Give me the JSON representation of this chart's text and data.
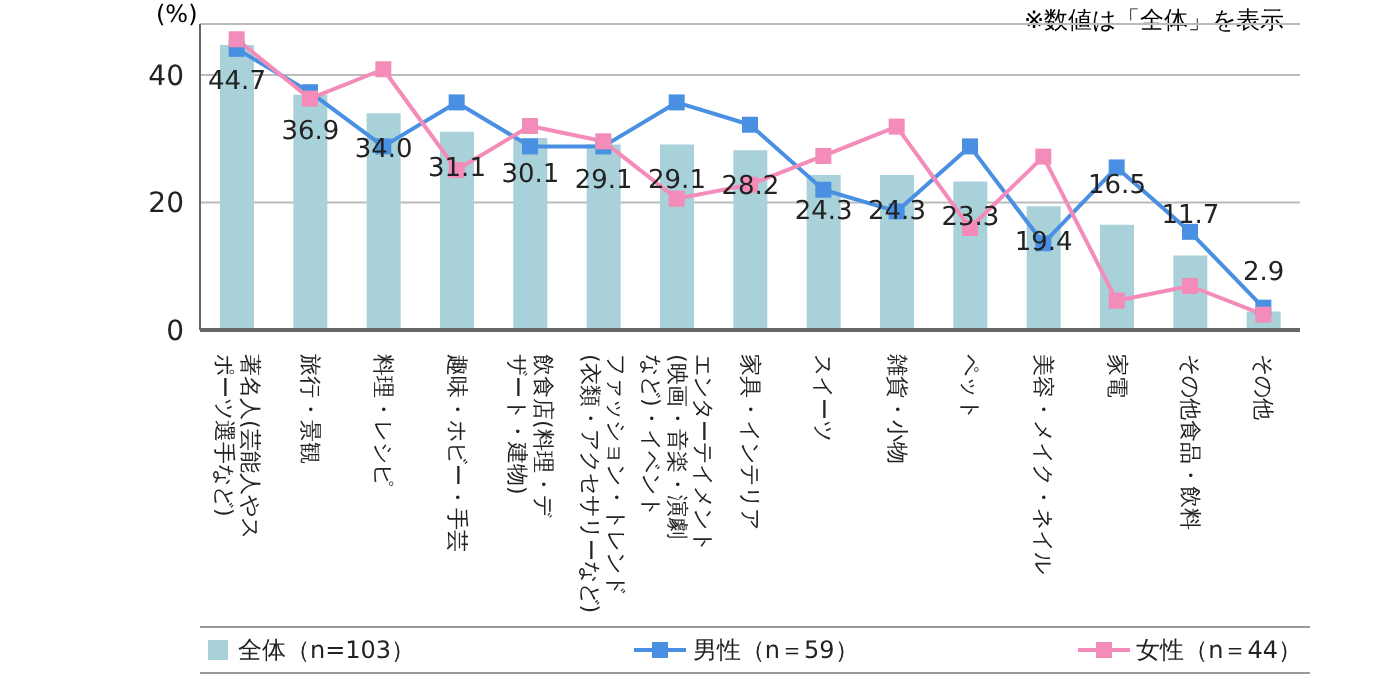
{
  "chart_data": {
    "type": "bar",
    "ylabel": "(%)",
    "annotations": [
      "※数値は「全体」を表示"
    ],
    "categories": [
      "著名人(芸能人やスポーツ選手など)",
      "旅行・景観",
      "料理・レシピ",
      "趣味・ホビー・手芸",
      "飲食店(料理・デザート・建物)",
      "ファッション・トレンド(衣類・アクセサリーなど)",
      "エンターテイメント(映画・音楽・演劇など)・イベント",
      "家具・インテリア",
      "スイーツ",
      "雑貨・小物",
      "ペット",
      "美容・メイク・ネイル",
      "家電",
      "その他食品・飲料",
      "その他"
    ],
    "series": [
      {
        "name": "全体（n=103）",
        "color": "#a9d1da",
        "values": [
          44.7,
          36.9,
          34.0,
          31.1,
          30.1,
          29.1,
          29.1,
          28.2,
          24.3,
          24.3,
          23.3,
          19.4,
          16.5,
          11.7,
          2.9
        ],
        "value_labels": [
          "44.7",
          "36.9",
          "34.0",
          "31.1",
          "30.1",
          "29.1",
          "29.1",
          "28.2",
          "24.3",
          "24.3",
          "23.3",
          "19.4",
          "16.5",
          "11.7",
          "2.9"
        ]
      },
      {
        "name": "男性（n＝59）",
        "type": "line",
        "color": "#4a90e2",
        "values": [
          44.1,
          37.3,
          28.8,
          35.7,
          28.8,
          28.8,
          35.7,
          32.2,
          22.0,
          18.6,
          28.8,
          13.6,
          25.5,
          15.4,
          3.5
        ]
      },
      {
        "name": "女性（n＝44）",
        "type": "line",
        "color": "#f48cba",
        "values": [
          45.6,
          36.3,
          40.9,
          25.1,
          32.0,
          29.6,
          20.6,
          22.8,
          27.3,
          31.9,
          16.0,
          27.2,
          4.6,
          6.9,
          2.4
        ]
      }
    ],
    "ylim": [
      0,
      48
    ],
    "yticks": [
      0,
      20,
      40
    ],
    "grid": "y",
    "legend": "bottom",
    "marker": "square",
    "line_style": "solid"
  }
}
